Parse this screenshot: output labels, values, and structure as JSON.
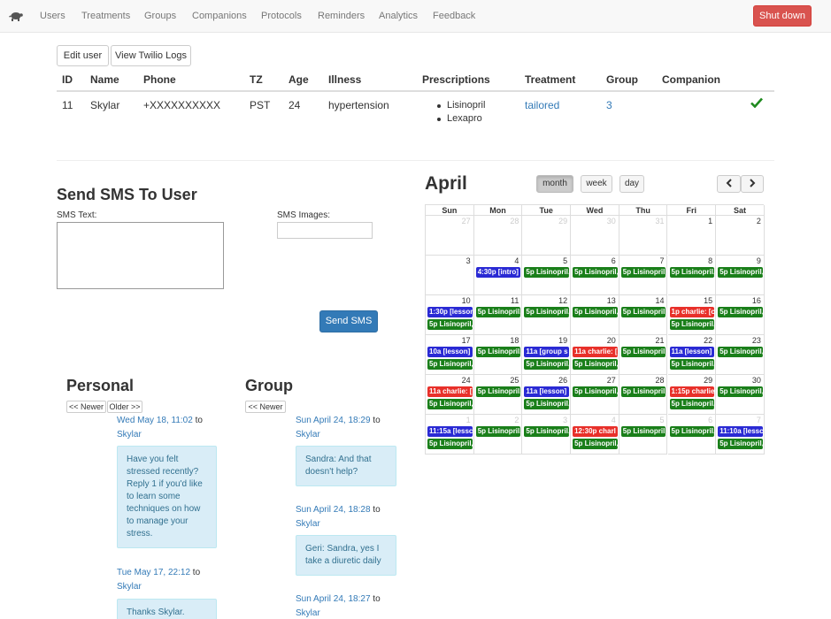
{
  "nav": {
    "brand_icon": "turtle-icon",
    "links": [
      "Users",
      "Treatments",
      "Groups",
      "Companions",
      "Protocols",
      "Reminders",
      "Analytics",
      "Feedback"
    ],
    "shutdown_label": "Shut down"
  },
  "actions": {
    "edit_user": "Edit user",
    "twilio_logs": "View Twilio Logs"
  },
  "user_table": {
    "headers": [
      "ID",
      "Name",
      "Phone",
      "TZ",
      "Age",
      "Illness",
      "Prescriptions",
      "Treatment",
      "Group",
      "Companion"
    ],
    "row": {
      "id": "11",
      "name": "Skylar",
      "phone": "+XXXXXXXXXX",
      "tz": "PST",
      "age": "24",
      "illness": "hypertension",
      "prescriptions": [
        "Lisinopril",
        "Lexapro"
      ],
      "treatment": "tailored",
      "group": "3",
      "companion_icon": "checkmark-icon"
    }
  },
  "sms_form": {
    "title": "Send SMS To User",
    "text_label": "SMS Text:",
    "text_value": "",
    "images_label": "SMS Images:",
    "send_label": "Send SMS"
  },
  "personal": {
    "title": "Personal",
    "newer": "<< Newer",
    "older": "Older >>",
    "to_word": "to",
    "messages": [
      {
        "date": "Wed May 18, 11:02",
        "recipient": "Skylar",
        "text": "Have you felt stressed recently? Reply 1 if you'd like to learn some techniques on how to manage your stress."
      },
      {
        "date": "Tue May 17, 22:12",
        "recipient": "Skylar",
        "text": "Thanks Skylar."
      }
    ]
  },
  "group": {
    "title": "Group",
    "newer": "<< Newer",
    "to_word": "to",
    "messages": [
      {
        "date": "Sun April 24, 18:29",
        "recipient": "Skylar",
        "text": "Sandra: And that doesn't help?"
      },
      {
        "date": "Sun April 24, 18:28",
        "recipient": "Skylar",
        "text": "Geri: Sandra, yes I take a diuretic daily"
      },
      {
        "date": "Sun April 24, 18:27",
        "recipient": "Skylar",
        "text": ""
      }
    ]
  },
  "calendar": {
    "month": "April",
    "views": [
      "month",
      "week",
      "day"
    ],
    "active_view": "month",
    "prev_icon": "chevron-left-icon",
    "next_icon": "chevron-right-icon",
    "weekdays": [
      "Sun",
      "Mon",
      "Tue",
      "Wed",
      "Thu",
      "Fri",
      "Sat"
    ],
    "colors": {
      "green": "#1a7f1a",
      "blue": "#2a2ad4",
      "red": "#e8302a"
    },
    "weeks": [
      {
        "days": [
          "27",
          "28",
          "29",
          "30",
          "31",
          "1",
          "2"
        ],
        "other": [
          0,
          1,
          2,
          3,
          4
        ]
      },
      {
        "days": [
          "3",
          "4",
          "5",
          "6",
          "7",
          "8",
          "9"
        ],
        "other": []
      },
      {
        "days": [
          "10",
          "11",
          "12",
          "13",
          "14",
          "15",
          "16"
        ],
        "other": []
      },
      {
        "days": [
          "17",
          "18",
          "19",
          "20",
          "21",
          "22",
          "23"
        ],
        "other": []
      },
      {
        "days": [
          "24",
          "25",
          "26",
          "27",
          "28",
          "29",
          "30"
        ],
        "other": []
      },
      {
        "days": [
          "1",
          "2",
          "3",
          "4",
          "5",
          "6",
          "7"
        ],
        "other": [
          0,
          1,
          2,
          3,
          4,
          5,
          6
        ]
      }
    ],
    "events": [
      {
        "week": 1,
        "day": 1,
        "slot": 0,
        "text": "4:30p [intro]",
        "color": "blue"
      },
      {
        "week": 1,
        "day": 2,
        "slot": 0,
        "text": "5p Lisinopril,",
        "color": "green"
      },
      {
        "week": 1,
        "day": 3,
        "slot": 0,
        "text": "5p Lisinopril,",
        "color": "green"
      },
      {
        "week": 1,
        "day": 4,
        "slot": 0,
        "text": "5p Lisinopril,",
        "color": "green"
      },
      {
        "week": 1,
        "day": 5,
        "slot": 0,
        "text": "5p Lisinopril,",
        "color": "green"
      },
      {
        "week": 1,
        "day": 6,
        "slot": 0,
        "text": "5p Lisinopril,",
        "color": "green"
      },
      {
        "week": 2,
        "day": 0,
        "slot": 0,
        "text": "1:30p [lesson",
        "color": "blue"
      },
      {
        "week": 2,
        "day": 0,
        "slot": 1,
        "text": "5p Lisinopril,",
        "color": "green"
      },
      {
        "week": 2,
        "day": 1,
        "slot": 0,
        "text": "5p Lisinopril,",
        "color": "green"
      },
      {
        "week": 2,
        "day": 2,
        "slot": 0,
        "text": "5p Lisinopril,",
        "color": "green"
      },
      {
        "week": 2,
        "day": 3,
        "slot": 0,
        "text": "5p Lisinopril,",
        "color": "green"
      },
      {
        "week": 2,
        "day": 4,
        "slot": 0,
        "text": "5p Lisinopril,",
        "color": "green"
      },
      {
        "week": 2,
        "day": 5,
        "slot": 0,
        "text": "1p charlie: [c",
        "color": "red"
      },
      {
        "week": 2,
        "day": 5,
        "slot": 1,
        "text": "5p Lisinopril,",
        "color": "green"
      },
      {
        "week": 2,
        "day": 6,
        "slot": 0,
        "text": "5p Lisinopril,",
        "color": "green"
      },
      {
        "week": 3,
        "day": 0,
        "slot": 0,
        "text": "10a [lesson]",
        "color": "blue"
      },
      {
        "week": 3,
        "day": 0,
        "slot": 1,
        "text": "5p Lisinopril,",
        "color": "green"
      },
      {
        "week": 3,
        "day": 1,
        "slot": 0,
        "text": "5p Lisinopril,",
        "color": "green"
      },
      {
        "week": 3,
        "day": 2,
        "slot": 0,
        "text": "11a [group s",
        "color": "blue"
      },
      {
        "week": 3,
        "day": 2,
        "slot": 1,
        "text": "5p Lisinopril,",
        "color": "green"
      },
      {
        "week": 3,
        "day": 3,
        "slot": 0,
        "text": "11a charlie: [",
        "color": "red"
      },
      {
        "week": 3,
        "day": 3,
        "slot": 1,
        "text": "5p Lisinopril,",
        "color": "green"
      },
      {
        "week": 3,
        "day": 4,
        "slot": 0,
        "text": "5p Lisinopril,",
        "color": "green"
      },
      {
        "week": 3,
        "day": 5,
        "slot": 0,
        "text": "11a [lesson] .",
        "color": "blue"
      },
      {
        "week": 3,
        "day": 5,
        "slot": 1,
        "text": "5p Lisinopril,",
        "color": "green"
      },
      {
        "week": 3,
        "day": 6,
        "slot": 0,
        "text": "5p Lisinopril,",
        "color": "green"
      },
      {
        "week": 4,
        "day": 0,
        "slot": 0,
        "text": "11a charlie: [",
        "color": "red"
      },
      {
        "week": 4,
        "day": 0,
        "slot": 1,
        "text": "5p Lisinopril,",
        "color": "green"
      },
      {
        "week": 4,
        "day": 1,
        "slot": 0,
        "text": "5p Lisinopril,",
        "color": "green"
      },
      {
        "week": 4,
        "day": 2,
        "slot": 0,
        "text": "11a [lesson]",
        "color": "blue"
      },
      {
        "week": 4,
        "day": 2,
        "slot": 1,
        "text": "5p Lisinopril,",
        "color": "green"
      },
      {
        "week": 4,
        "day": 3,
        "slot": 0,
        "text": "5p Lisinopril,",
        "color": "green"
      },
      {
        "week": 4,
        "day": 4,
        "slot": 0,
        "text": "5p Lisinopril,",
        "color": "green"
      },
      {
        "week": 4,
        "day": 5,
        "slot": 0,
        "text": "1:15p charlie",
        "color": "red"
      },
      {
        "week": 4,
        "day": 5,
        "slot": 1,
        "text": "5p Lisinopril,",
        "color": "green"
      },
      {
        "week": 4,
        "day": 6,
        "slot": 0,
        "text": "5p Lisinopril,",
        "color": "green"
      },
      {
        "week": 5,
        "day": 0,
        "slot": 0,
        "text": "11:15a [lessc",
        "color": "blue"
      },
      {
        "week": 5,
        "day": 0,
        "slot": 1,
        "text": "5p Lisinopril,",
        "color": "green"
      },
      {
        "week": 5,
        "day": 1,
        "slot": 0,
        "text": "5p Lisinopril,",
        "color": "green"
      },
      {
        "week": 5,
        "day": 2,
        "slot": 0,
        "text": "5p Lisinopril,",
        "color": "green"
      },
      {
        "week": 5,
        "day": 3,
        "slot": 0,
        "text": "12:30p charl",
        "color": "red"
      },
      {
        "week": 5,
        "day": 3,
        "slot": 1,
        "text": "5p Lisinopril,",
        "color": "green"
      },
      {
        "week": 5,
        "day": 4,
        "slot": 0,
        "text": "5p Lisinopril,",
        "color": "green"
      },
      {
        "week": 5,
        "day": 5,
        "slot": 0,
        "text": "5p Lisinopril,",
        "color": "green"
      },
      {
        "week": 5,
        "day": 6,
        "slot": 0,
        "text": "11:10a [lessc",
        "color": "blue"
      },
      {
        "week": 5,
        "day": 6,
        "slot": 1,
        "text": "5p Lisinopril,",
        "color": "green"
      }
    ]
  }
}
